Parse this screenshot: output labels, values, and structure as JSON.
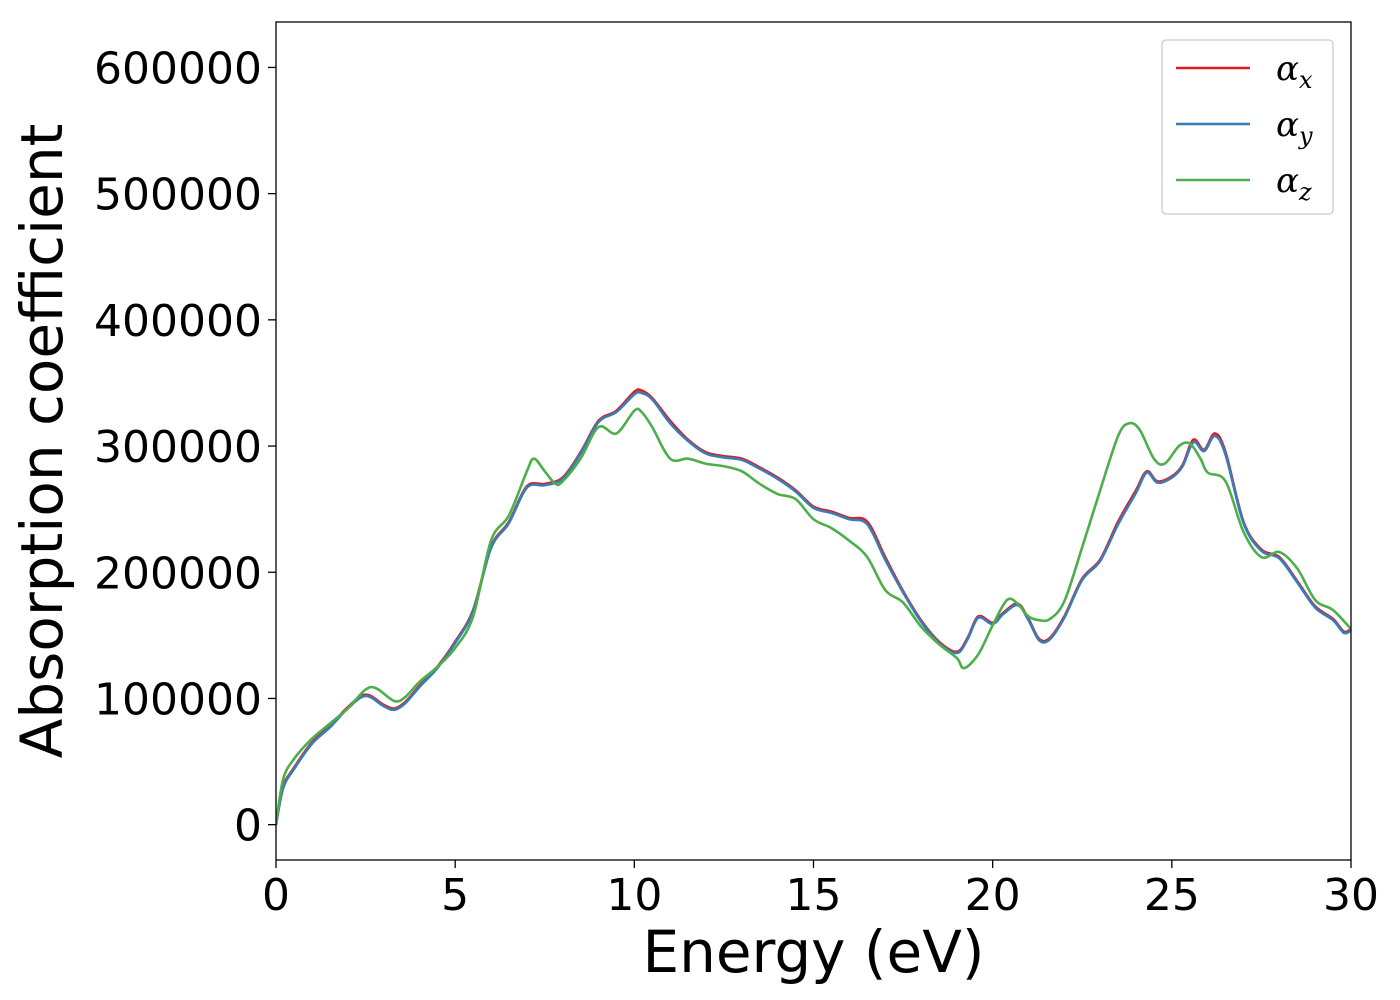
{
  "chart_data": {
    "type": "line",
    "title": "",
    "xlabel": "Energy (eV)",
    "ylabel": "Absorption coefficient",
    "xlim": [
      0,
      30
    ],
    "ylim": [
      -28000,
      636000
    ],
    "xticks": [
      "0",
      "5",
      "10",
      "15",
      "20",
      "25",
      "30"
    ],
    "yticks": [
      "0",
      "100000",
      "200000",
      "300000",
      "400000",
      "500000",
      "600000"
    ],
    "grid": false,
    "legend_position": "top-right",
    "series": [
      {
        "name": "α",
        "subscript": "x",
        "color": "#e41a1c",
        "x": [
          0,
          0.2,
          0.5,
          1,
          1.5,
          2,
          2.5,
          3,
          3.3,
          3.6,
          4,
          4.5,
          5,
          5.5,
          6,
          6.5,
          7,
          7.5,
          8,
          8.5,
          9,
          9.5,
          10,
          10.2,
          10.5,
          11,
          11.5,
          12,
          12.5,
          13,
          13.5,
          14,
          14.5,
          15,
          15.5,
          16,
          16.5,
          17,
          17.5,
          18,
          18.5,
          19,
          19.3,
          19.6,
          20,
          20.3,
          20.7,
          21,
          21.3,
          21.6,
          22,
          22.5,
          23,
          23.5,
          24,
          24.3,
          24.6,
          25,
          25.3,
          25.6,
          25.9,
          26.2,
          26.5,
          27,
          27.5,
          28,
          28.5,
          29,
          29.5,
          29.8,
          30
        ],
        "values": [
          0,
          30000,
          45000,
          65000,
          78000,
          93000,
          103000,
          95000,
          92000,
          97000,
          110000,
          125000,
          145000,
          170000,
          220000,
          240000,
          268000,
          270000,
          275000,
          295000,
          320000,
          328000,
          343000,
          344000,
          338000,
          320000,
          305000,
          295000,
          292000,
          290000,
          283000,
          275000,
          265000,
          252000,
          248000,
          243000,
          240000,
          212000,
          185000,
          162000,
          145000,
          137000,
          148000,
          165000,
          160000,
          168000,
          175000,
          163000,
          147000,
          148000,
          165000,
          195000,
          210000,
          240000,
          265000,
          280000,
          272000,
          276000,
          285000,
          305000,
          297000,
          310000,
          295000,
          240000,
          218000,
          212000,
          193000,
          173000,
          163000,
          153000,
          155000
        ]
      },
      {
        "name": "α",
        "subscript": "y",
        "color": "#377eb8",
        "x": [
          0,
          0.2,
          0.5,
          1,
          1.5,
          2,
          2.5,
          3,
          3.3,
          3.6,
          4,
          4.5,
          5,
          5.5,
          6,
          6.5,
          7,
          7.5,
          8,
          8.5,
          9,
          9.5,
          10,
          10.2,
          10.5,
          11,
          11.5,
          12,
          12.5,
          13,
          13.5,
          14,
          14.5,
          15,
          15.5,
          16,
          16.5,
          17,
          17.5,
          18,
          18.5,
          19,
          19.3,
          19.6,
          20,
          20.3,
          20.7,
          21,
          21.3,
          21.6,
          22,
          22.5,
          23,
          23.5,
          24,
          24.3,
          24.6,
          25,
          25.3,
          25.6,
          25.9,
          26.2,
          26.5,
          27,
          27.5,
          28,
          28.5,
          29,
          29.5,
          29.8,
          30
        ],
        "values": [
          0,
          29000,
          44000,
          64000,
          77000,
          92000,
          102000,
          94000,
          91000,
          96000,
          109000,
          124000,
          144000,
          169000,
          219000,
          239000,
          267000,
          269000,
          274000,
          294000,
          319000,
          327000,
          341000,
          342000,
          337000,
          318000,
          304000,
          294000,
          291000,
          289000,
          282000,
          274000,
          264000,
          251000,
          247000,
          242000,
          238000,
          210000,
          184000,
          161000,
          144000,
          136000,
          147000,
          164000,
          159000,
          167000,
          174000,
          162000,
          146000,
          147000,
          164000,
          194000,
          209000,
          238000,
          263000,
          279000,
          271000,
          275000,
          284000,
          303000,
          296000,
          308000,
          293000,
          239000,
          217000,
          211000,
          192000,
          172000,
          162000,
          152000,
          154000
        ]
      },
      {
        "name": "α",
        "subscript": "z",
        "color": "#4daf4a",
        "x": [
          0,
          0.2,
          0.5,
          1,
          1.5,
          2,
          2.5,
          2.8,
          3.3,
          3.6,
          4,
          4.5,
          5,
          5.5,
          6,
          6.5,
          7,
          7.2,
          7.5,
          7.8,
          8,
          8.5,
          9,
          9.5,
          10,
          10.2,
          10.5,
          11,
          11.5,
          12,
          12.5,
          13,
          13.5,
          14,
          14.5,
          15,
          15.5,
          16,
          16.5,
          17,
          17.5,
          18,
          18.5,
          19,
          19.2,
          19.6,
          20,
          20.4,
          20.7,
          21,
          21.3,
          21.6,
          22,
          22.5,
          23,
          23.5,
          23.8,
          24.1,
          24.5,
          24.8,
          25.2,
          25.5,
          25.8,
          26,
          26.5,
          27,
          27.5,
          28,
          28.5,
          29,
          29.5,
          30
        ],
        "values": [
          0,
          36000,
          52000,
          68000,
          80000,
          92000,
          107000,
          108000,
          98000,
          101000,
          113000,
          125000,
          140000,
          165000,
          225000,
          245000,
          280000,
          290000,
          280000,
          270000,
          272000,
          290000,
          315000,
          310000,
          328000,
          327000,
          315000,
          290000,
          290000,
          286000,
          284000,
          280000,
          270000,
          262000,
          258000,
          242000,
          235000,
          225000,
          212000,
          186000,
          176000,
          157000,
          143000,
          132000,
          124000,
          135000,
          158000,
          178000,
          175000,
          165000,
          162000,
          163000,
          177000,
          220000,
          265000,
          308000,
          318000,
          313000,
          290000,
          286000,
          300000,
          302000,
          290000,
          279000,
          272000,
          232000,
          212000,
          216000,
          203000,
          178000,
          170000,
          155000
        ]
      }
    ]
  }
}
